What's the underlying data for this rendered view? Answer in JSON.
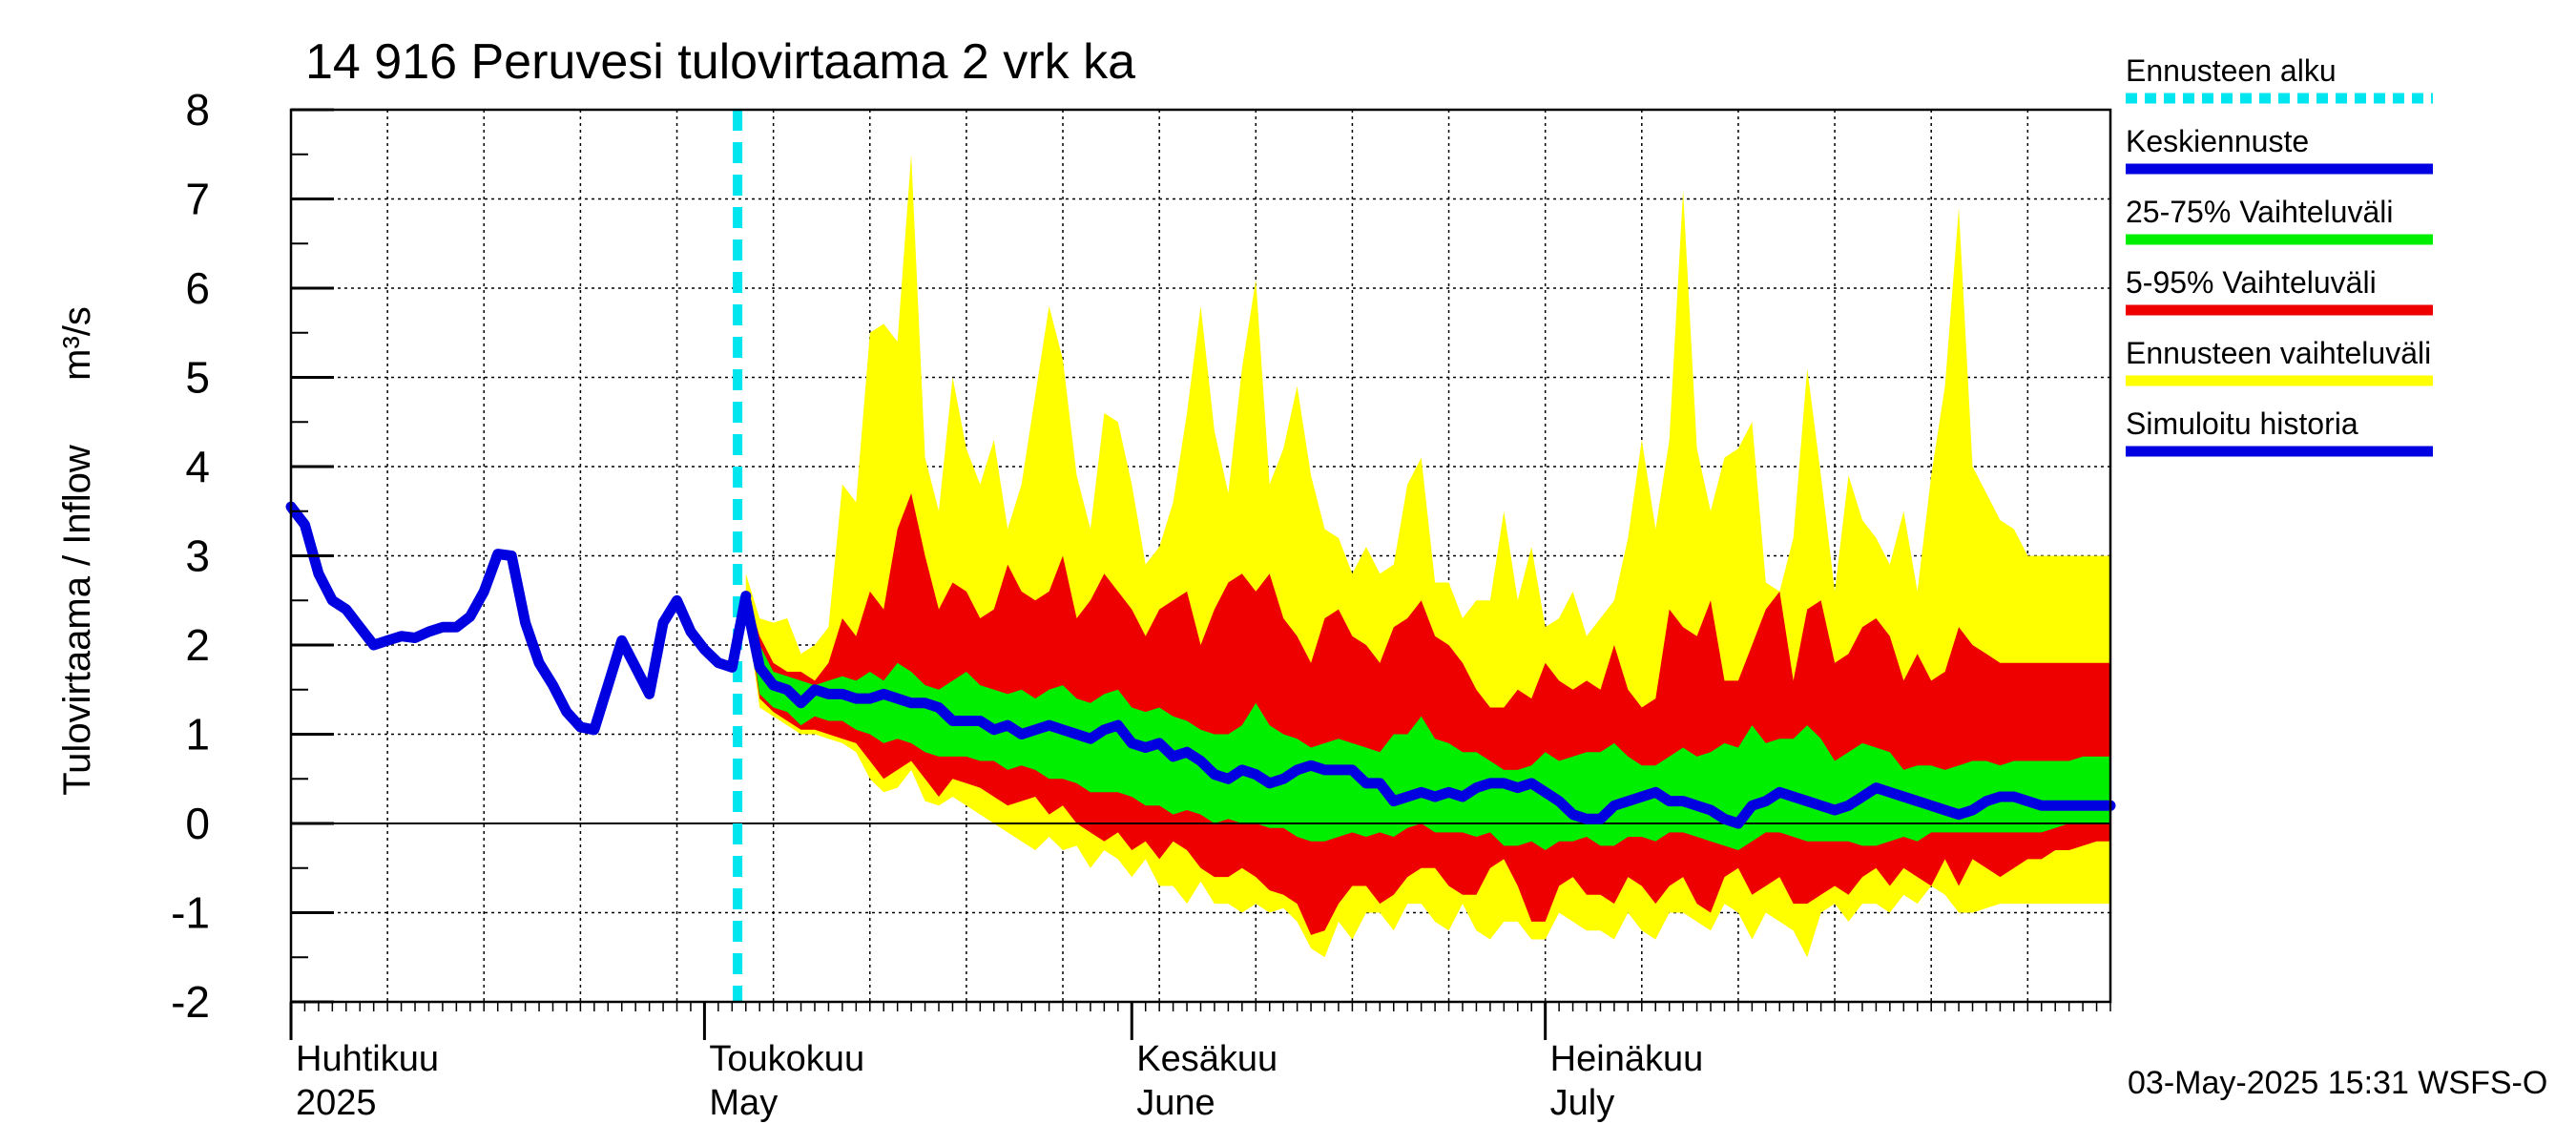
{
  "chart_data": {
    "type": "area",
    "title": "14 916 Peruvesi tulovirtaama 2 vrk ka",
    "ylabel": "Tulovirtaama / Inflow",
    "yunit": "m³/s",
    "ylim": [
      -2,
      8
    ],
    "yticks": [
      "8",
      "7",
      "6",
      "5",
      "4",
      "3",
      "2",
      "1",
      "0",
      "-1",
      "-2"
    ],
    "ytick_values": [
      8,
      7,
      6,
      5,
      4,
      3,
      2,
      1,
      0,
      -1,
      -2
    ],
    "x_range_days": [
      0,
      132
    ],
    "month_labels": [
      {
        "fi": "Huhtikuu",
        "en": "2025",
        "day": 0
      },
      {
        "fi": "Toukokuu",
        "en": "May",
        "day": 30
      },
      {
        "fi": "Kesäkuu",
        "en": "June",
        "day": 61
      },
      {
        "fi": "Heinäkuu",
        "en": "July",
        "day": 91
      }
    ],
    "forecast_start_day": 32.4,
    "footer": "03-May-2025 15:31 WSFS-O",
    "legend": [
      {
        "label": "Ennusteen alku",
        "color": "#00e5ee",
        "style": "dashed"
      },
      {
        "label": "Keskiennuste",
        "color": "#0000e0",
        "style": "line"
      },
      {
        "label": "25-75% Vaihteluväli",
        "color": "#00ee00",
        "style": "line"
      },
      {
        "label": "5-95% Vaihteluväli",
        "color": "#ee0000",
        "style": "line"
      },
      {
        "label": "Ennusteen vaihteluväli",
        "color": "#ffff00",
        "style": "line"
      },
      {
        "label": "Simuloitu historia",
        "color": "#0000e0",
        "style": "line"
      }
    ],
    "series": [
      {
        "name": "Simuloitu historia",
        "x": [
          0,
          1,
          2,
          3,
          4,
          5,
          6,
          7,
          8,
          9,
          10,
          11,
          12,
          13,
          14,
          15,
          16,
          17,
          18,
          19,
          20,
          21,
          22,
          23,
          24,
          25,
          26,
          27,
          28,
          29,
          30,
          31,
          32,
          33
        ],
        "y": [
          3.55,
          3.35,
          2.8,
          2.5,
          2.4,
          2.2,
          2.0,
          2.05,
          2.1,
          2.08,
          2.15,
          2.2,
          2.2,
          2.32,
          2.6,
          3.02,
          3.0,
          2.25,
          1.8,
          1.55,
          1.25,
          1.08,
          1.05,
          1.55,
          2.05,
          1.75,
          1.45,
          2.25,
          2.5,
          2.15,
          1.95,
          1.8,
          1.75,
          2.55
        ]
      },
      {
        "name": "Ennusteen vaihteluväli",
        "x": [
          33,
          34,
          35,
          36,
          37,
          38,
          39,
          40,
          41,
          42,
          43,
          44,
          45,
          46,
          47,
          48,
          49,
          50,
          51,
          52,
          53,
          54,
          55,
          56,
          57,
          58,
          59,
          60,
          61,
          62,
          63,
          64,
          65,
          66,
          67,
          68,
          69,
          70,
          71,
          72,
          73,
          74,
          75,
          76,
          77,
          78,
          79,
          80,
          81,
          82,
          83,
          84,
          85,
          86,
          87,
          88,
          89,
          90,
          91,
          92,
          93,
          94,
          95,
          96,
          97,
          98,
          99,
          100,
          101,
          102,
          103,
          104,
          105,
          106,
          107,
          108,
          109,
          110,
          111,
          112,
          113,
          114,
          115,
          116,
          117,
          118,
          119,
          120,
          121,
          122,
          123,
          124,
          125,
          126,
          127,
          128,
          129,
          130,
          131,
          132
        ],
        "upper": [
          2.8,
          2.3,
          2.25,
          2.3,
          1.9,
          2.0,
          2.2,
          3.8,
          3.6,
          5.5,
          5.6,
          5.4,
          7.5,
          4.1,
          3.5,
          5.0,
          4.2,
          3.8,
          4.3,
          3.3,
          3.8,
          4.8,
          5.8,
          5.2,
          3.9,
          3.3,
          4.6,
          4.5,
          3.8,
          2.9,
          3.1,
          3.6,
          4.6,
          5.8,
          4.4,
          3.7,
          5.1,
          6.1,
          3.8,
          4.2,
          4.9,
          3.9,
          3.3,
          3.2,
          2.8,
          3.1,
          2.8,
          2.9,
          3.8,
          4.1,
          2.7,
          2.7,
          2.3,
          2.5,
          2.5,
          3.5,
          2.5,
          3.1,
          2.2,
          2.3,
          2.6,
          2.1,
          2.3,
          2.5,
          3.2,
          4.3,
          3.3,
          4.3,
          7.1,
          4.2,
          3.5,
          4.1,
          4.2,
          4.5,
          2.7,
          2.6,
          3.2,
          5.1,
          3.9,
          2.6,
          3.9,
          3.4,
          3.2,
          2.9,
          3.5,
          2.6,
          3.9,
          4.9,
          6.9,
          4.0,
          3.7,
          3.4,
          3.3,
          3.0,
          3.0,
          3.0,
          3.0,
          3.0,
          3.0,
          3.0
        ],
        "lower": [
          2.4,
          1.3,
          1.2,
          1.1,
          1.0,
          1.0,
          0.95,
          0.9,
          0.8,
          0.5,
          0.35,
          0.4,
          0.6,
          0.25,
          0.2,
          0.3,
          0.2,
          0.1,
          0.0,
          -0.1,
          -0.2,
          -0.3,
          -0.15,
          -0.3,
          -0.25,
          -0.5,
          -0.3,
          -0.4,
          -0.6,
          -0.4,
          -0.7,
          -0.7,
          -0.9,
          -0.65,
          -0.9,
          -0.9,
          -1.0,
          -0.9,
          -1.0,
          -0.95,
          -1.1,
          -1.4,
          -1.5,
          -1.1,
          -1.3,
          -1.0,
          -1.0,
          -1.2,
          -0.9,
          -0.9,
          -1.1,
          -1.2,
          -0.9,
          -1.2,
          -1.3,
          -1.1,
          -1.1,
          -1.3,
          -1.3,
          -1.0,
          -1.1,
          -1.2,
          -1.2,
          -1.3,
          -1.0,
          -1.2,
          -1.3,
          -1.0,
          -1.0,
          -1.1,
          -1.2,
          -0.9,
          -1.0,
          -1.3,
          -1.0,
          -1.1,
          -1.2,
          -1.5,
          -1.0,
          -0.9,
          -1.1,
          -0.9,
          -0.9,
          -1.0,
          -0.8,
          -0.9,
          -0.7,
          -0.8,
          -1.0,
          -1.0,
          -0.95,
          -0.9,
          -0.9,
          -0.9,
          -0.9,
          -0.9,
          -0.9,
          -0.9,
          -0.9,
          -0.9
        ]
      },
      {
        "name": "5-95% Vaihteluväli",
        "x": [
          33,
          34,
          35,
          36,
          37,
          38,
          39,
          40,
          41,
          42,
          43,
          44,
          45,
          46,
          47,
          48,
          49,
          50,
          51,
          52,
          53,
          54,
          55,
          56,
          57,
          58,
          59,
          60,
          61,
          62,
          63,
          64,
          65,
          66,
          67,
          68,
          69,
          70,
          71,
          72,
          73,
          74,
          75,
          76,
          77,
          78,
          79,
          80,
          81,
          82,
          83,
          84,
          85,
          86,
          87,
          88,
          89,
          90,
          91,
          92,
          93,
          94,
          95,
          96,
          97,
          98,
          99,
          100,
          101,
          102,
          103,
          104,
          105,
          106,
          107,
          108,
          109,
          110,
          111,
          112,
          113,
          114,
          115,
          116,
          117,
          118,
          119,
          120,
          121,
          122,
          123,
          124,
          125,
          126,
          127,
          128,
          129,
          130,
          131,
          132
        ],
        "upper": [
          2.6,
          2.1,
          1.8,
          1.7,
          1.7,
          1.6,
          1.8,
          2.3,
          2.1,
          2.6,
          2.4,
          3.3,
          3.7,
          3.0,
          2.4,
          2.7,
          2.6,
          2.3,
          2.4,
          2.9,
          2.6,
          2.5,
          2.6,
          3.0,
          2.3,
          2.5,
          2.8,
          2.6,
          2.4,
          2.1,
          2.4,
          2.5,
          2.6,
          2.0,
          2.4,
          2.7,
          2.8,
          2.6,
          2.8,
          2.3,
          2.1,
          1.8,
          2.3,
          2.4,
          2.1,
          2.0,
          1.8,
          2.2,
          2.3,
          2.5,
          2.1,
          2.0,
          1.8,
          1.5,
          1.3,
          1.3,
          1.5,
          1.4,
          1.8,
          1.6,
          1.5,
          1.6,
          1.5,
          2.0,
          1.5,
          1.3,
          1.4,
          2.4,
          2.2,
          2.1,
          2.5,
          1.6,
          1.6,
          2.0,
          2.4,
          2.6,
          1.6,
          2.4,
          2.5,
          1.8,
          1.9,
          2.2,
          2.3,
          2.1,
          1.6,
          1.9,
          1.6,
          1.7,
          2.2,
          2.0,
          1.9,
          1.8,
          1.8,
          1.8,
          1.8,
          1.8,
          1.8,
          1.8,
          1.8,
          1.8
        ],
        "lower": [
          2.45,
          1.4,
          1.25,
          1.15,
          1.05,
          1.05,
          1.0,
          0.95,
          0.9,
          0.7,
          0.5,
          0.6,
          0.7,
          0.5,
          0.3,
          0.5,
          0.45,
          0.4,
          0.3,
          0.2,
          0.25,
          0.3,
          0.1,
          0.2,
          0.0,
          -0.1,
          -0.2,
          -0.1,
          -0.3,
          -0.2,
          -0.4,
          -0.2,
          -0.3,
          -0.5,
          -0.6,
          -0.6,
          -0.5,
          -0.6,
          -0.75,
          -0.8,
          -0.9,
          -1.25,
          -1.2,
          -0.9,
          -0.7,
          -0.7,
          -0.9,
          -0.8,
          -0.6,
          -0.5,
          -0.5,
          -0.7,
          -0.8,
          -0.8,
          -0.5,
          -0.4,
          -0.7,
          -1.1,
          -1.1,
          -0.7,
          -0.6,
          -0.8,
          -0.8,
          -0.9,
          -0.6,
          -0.7,
          -0.9,
          -0.7,
          -0.6,
          -0.9,
          -1.0,
          -0.6,
          -0.5,
          -0.8,
          -0.7,
          -0.6,
          -0.9,
          -0.9,
          -0.8,
          -0.7,
          -0.8,
          -0.6,
          -0.5,
          -0.7,
          -0.5,
          -0.6,
          -0.7,
          -0.4,
          -0.7,
          -0.4,
          -0.5,
          -0.6,
          -0.5,
          -0.4,
          -0.4,
          -0.3,
          -0.3,
          -0.25,
          -0.2,
          -0.2
        ]
      },
      {
        "name": "25-75% Vaihteluväli",
        "x": [
          33,
          34,
          35,
          36,
          37,
          38,
          39,
          40,
          41,
          42,
          43,
          44,
          45,
          46,
          47,
          48,
          49,
          50,
          51,
          52,
          53,
          54,
          55,
          56,
          57,
          58,
          59,
          60,
          61,
          62,
          63,
          64,
          65,
          66,
          67,
          68,
          69,
          70,
          71,
          72,
          73,
          74,
          75,
          76,
          77,
          78,
          79,
          80,
          81,
          82,
          83,
          84,
          85,
          86,
          87,
          88,
          89,
          90,
          91,
          92,
          93,
          94,
          95,
          96,
          97,
          98,
          99,
          100,
          101,
          102,
          103,
          104,
          105,
          106,
          107,
          108,
          109,
          110,
          111,
          112,
          113,
          114,
          115,
          116,
          117,
          118,
          119,
          120,
          121,
          122,
          123,
          124,
          125,
          126,
          127,
          128,
          129,
          130,
          131,
          132
        ],
        "upper": [
          2.55,
          2.0,
          1.7,
          1.65,
          1.6,
          1.55,
          1.6,
          1.65,
          1.6,
          1.7,
          1.6,
          1.8,
          1.7,
          1.55,
          1.5,
          1.6,
          1.7,
          1.55,
          1.5,
          1.45,
          1.5,
          1.4,
          1.5,
          1.55,
          1.4,
          1.35,
          1.45,
          1.5,
          1.3,
          1.25,
          1.3,
          1.2,
          1.15,
          1.05,
          1.0,
          1.0,
          1.1,
          1.35,
          1.1,
          1.0,
          0.95,
          0.85,
          0.9,
          0.95,
          0.9,
          0.85,
          0.8,
          1.0,
          1.0,
          1.2,
          0.95,
          0.9,
          0.8,
          0.8,
          0.7,
          0.6,
          0.6,
          0.65,
          0.8,
          0.7,
          0.75,
          0.8,
          0.8,
          0.9,
          0.75,
          0.65,
          0.65,
          0.75,
          0.85,
          0.75,
          0.8,
          0.9,
          0.85,
          1.1,
          0.9,
          0.95,
          0.95,
          1.1,
          0.95,
          0.7,
          0.8,
          0.9,
          0.85,
          0.8,
          0.6,
          0.65,
          0.65,
          0.6,
          0.65,
          0.7,
          0.7,
          0.65,
          0.7,
          0.7,
          0.7,
          0.7,
          0.7,
          0.75,
          0.75,
          0.75
        ],
        "lower": [
          2.5,
          1.45,
          1.3,
          1.25,
          1.1,
          1.2,
          1.15,
          1.15,
          1.05,
          1.0,
          0.9,
          0.95,
          0.9,
          0.8,
          0.75,
          0.75,
          0.75,
          0.7,
          0.7,
          0.6,
          0.65,
          0.6,
          0.5,
          0.5,
          0.45,
          0.35,
          0.35,
          0.35,
          0.3,
          0.2,
          0.2,
          0.1,
          0.15,
          0.1,
          0.0,
          0.05,
          0.0,
          0.0,
          -0.05,
          -0.05,
          -0.15,
          -0.2,
          -0.2,
          -0.15,
          -0.1,
          -0.15,
          -0.1,
          -0.15,
          -0.05,
          0.0,
          -0.1,
          -0.1,
          -0.1,
          -0.15,
          -0.1,
          -0.25,
          -0.25,
          -0.2,
          -0.3,
          -0.2,
          -0.2,
          -0.15,
          -0.25,
          -0.25,
          -0.15,
          -0.15,
          -0.2,
          -0.1,
          -0.1,
          -0.15,
          -0.2,
          -0.25,
          -0.3,
          -0.2,
          -0.1,
          -0.1,
          -0.15,
          -0.2,
          -0.2,
          -0.2,
          -0.2,
          -0.25,
          -0.25,
          -0.2,
          -0.15,
          -0.2,
          -0.1,
          -0.1,
          -0.1,
          -0.1,
          -0.1,
          -0.1,
          -0.1,
          -0.1,
          -0.1,
          -0.05,
          0.0,
          0.0,
          0.0,
          0.0
        ]
      },
      {
        "name": "Keskiennuste",
        "x": [
          33,
          34,
          35,
          36,
          37,
          38,
          39,
          40,
          41,
          42,
          43,
          44,
          45,
          46,
          47,
          48,
          49,
          50,
          51,
          52,
          53,
          54,
          55,
          56,
          57,
          58,
          59,
          60,
          61,
          62,
          63,
          64,
          65,
          66,
          67,
          68,
          69,
          70,
          71,
          72,
          73,
          74,
          75,
          76,
          77,
          78,
          79,
          80,
          81,
          82,
          83,
          84,
          85,
          86,
          87,
          88,
          89,
          90,
          91,
          92,
          93,
          94,
          95,
          96,
          97,
          98,
          99,
          100,
          101,
          102,
          103,
          104,
          105,
          106,
          107,
          108,
          109,
          110,
          111,
          112,
          113,
          114,
          115,
          116,
          117,
          118,
          119,
          120,
          121,
          122,
          123,
          124,
          125,
          126,
          127,
          128,
          129,
          130,
          131,
          132
        ],
        "y": [
          2.5,
          1.75,
          1.55,
          1.5,
          1.35,
          1.5,
          1.45,
          1.45,
          1.4,
          1.4,
          1.45,
          1.4,
          1.35,
          1.35,
          1.3,
          1.15,
          1.15,
          1.15,
          1.05,
          1.1,
          1.0,
          1.05,
          1.1,
          1.05,
          1.0,
          0.95,
          1.05,
          1.1,
          0.9,
          0.85,
          0.9,
          0.75,
          0.8,
          0.7,
          0.55,
          0.5,
          0.6,
          0.55,
          0.45,
          0.5,
          0.6,
          0.65,
          0.6,
          0.6,
          0.6,
          0.45,
          0.45,
          0.25,
          0.3,
          0.35,
          0.3,
          0.35,
          0.3,
          0.4,
          0.45,
          0.45,
          0.4,
          0.45,
          0.35,
          0.25,
          0.1,
          0.05,
          0.05,
          0.2,
          0.25,
          0.3,
          0.35,
          0.25,
          0.25,
          0.2,
          0.15,
          0.05,
          0.0,
          0.2,
          0.25,
          0.35,
          0.3,
          0.25,
          0.2,
          0.15,
          0.2,
          0.3,
          0.4,
          0.35,
          0.3,
          0.25,
          0.2,
          0.15,
          0.1,
          0.15,
          0.25,
          0.3,
          0.3,
          0.25,
          0.2,
          0.2,
          0.2,
          0.2,
          0.2,
          0.2
        ]
      }
    ]
  }
}
